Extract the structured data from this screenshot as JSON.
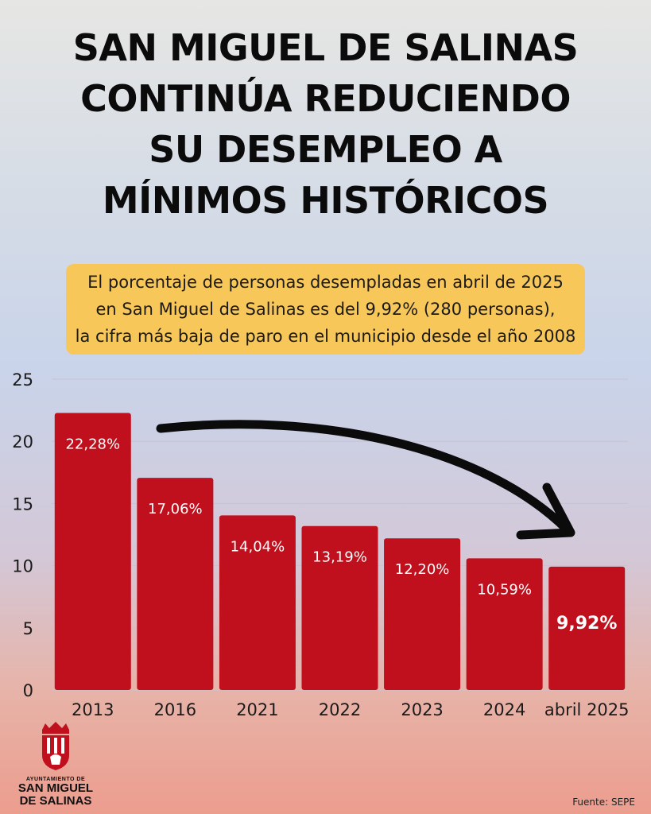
{
  "title_lines": [
    "SAN MIGUEL DE SALINAS",
    "CONTINÚA REDUCIENDO",
    "SU DESEMPLEO A",
    "MÍNIMOS HISTÓRICOS"
  ],
  "subtitle_lines": [
    "El porcentaje de personas desempladas en abril de 2025",
    "en San Miguel de Salinas es del 9,92% (280 personas),",
    "la cifra más baja de paro en el municipio desde el año 2008"
  ],
  "chart_data": {
    "type": "bar",
    "categories": [
      "2013",
      "2016",
      "2021",
      "2022",
      "2023",
      "2024",
      "abril 2025"
    ],
    "values": [
      22.28,
      17.06,
      14.04,
      13.19,
      12.2,
      10.59,
      9.92
    ],
    "value_labels": [
      "22,28%",
      "17,06%",
      "14,04%",
      "13,19%",
      "12,20%",
      "10,59%",
      "9,92%"
    ],
    "highlight_index": 6,
    "ylim": [
      0,
      25
    ],
    "yticks": [
      "0",
      "5",
      "10",
      "15",
      "20",
      "25"
    ],
    "grid": true,
    "bar_color": "#c0101d",
    "annotation": "curved downward arrow from 2013 to abril 2025"
  },
  "logo": {
    "line1": "AYUNTAMIENTO DE",
    "line2": "SAN MIGUEL",
    "line3": "DE SALINAS",
    "icon": "coat-of-arms-icon"
  },
  "source": "Fuente: SEPE",
  "colors": {
    "bar": "#c0101d",
    "highlight_box": "#f7c75a",
    "text": "#0b0b0b"
  }
}
